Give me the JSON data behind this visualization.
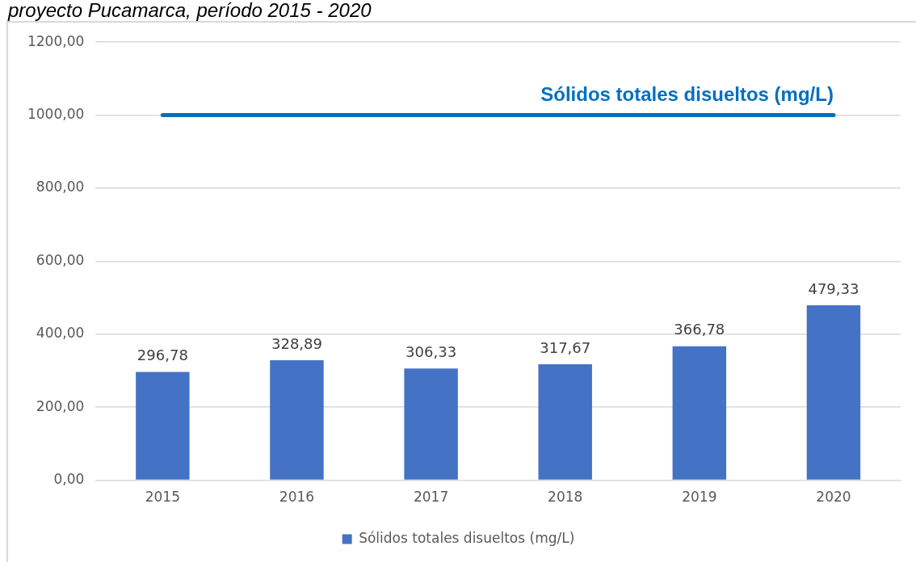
{
  "chart_data": {
    "type": "bar",
    "title": "proyecto Pucamarca, período 2015 - 2020",
    "categories": [
      "2015",
      "2016",
      "2017",
      "2018",
      "2019",
      "2020"
    ],
    "series": [
      {
        "name": "Sólidos totales disueltos (mg/L)",
        "color": "#4472c4",
        "values": [
          296.78,
          328.89,
          306.33,
          317.67,
          366.78,
          479.33
        ],
        "value_labels": [
          "296,78",
          "328,89",
          "306,33",
          "317,67",
          "366,78",
          "479,33"
        ]
      }
    ],
    "ylim": [
      0,
      1200
    ],
    "yticks": [
      {
        "value": 0,
        "label": "0,00"
      },
      {
        "value": 200,
        "label": "200,00"
      },
      {
        "value": 400,
        "label": "400,00"
      },
      {
        "value": 600,
        "label": "600,00"
      },
      {
        "value": 800,
        "label": "800,00"
      },
      {
        "value": 1000,
        "label": "1000,00"
      },
      {
        "value": 1200,
        "label": "1200,00"
      }
    ],
    "ref_lines": [
      {
        "axis": "y",
        "value": 1000,
        "label": "Sólidos totales disueltos (mg/L)",
        "color": "#0070c0"
      }
    ],
    "grid": "y",
    "legend": "bottom"
  }
}
